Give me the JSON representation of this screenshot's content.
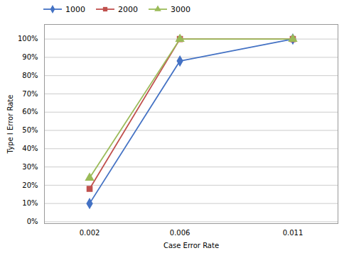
{
  "chart_data": {
    "type": "line",
    "x_label": "Case Error Rate",
    "y_label": "Type I Error Rate",
    "x": [
      0.002,
      0.006,
      0.011
    ],
    "series": [
      {
        "name": "1000",
        "color": "#4472C4",
        "marker": "diamond",
        "values": [
          0.1,
          0.88,
          1.0
        ]
      },
      {
        "name": "2000",
        "color": "#C0504D",
        "marker": "square",
        "values": [
          0.18,
          1.0,
          1.0
        ]
      },
      {
        "name": "3000",
        "color": "#9BBB59",
        "marker": "triangle",
        "values": [
          0.24,
          1.0,
          1.0
        ]
      }
    ],
    "xlim": [
      0.0,
      0.013
    ],
    "xticks": [
      0.002,
      0.006,
      0.011
    ],
    "ylim": [
      -0.01,
      1.08
    ],
    "yticks": [
      {
        "value": 0.0,
        "label": "0%"
      },
      {
        "value": 0.1,
        "label": "10%"
      },
      {
        "value": 0.2,
        "label": "20%"
      },
      {
        "value": 0.3,
        "label": "30%"
      },
      {
        "value": 0.4,
        "label": "40%"
      },
      {
        "value": 0.5,
        "label": "50%"
      },
      {
        "value": 0.6,
        "label": "60%"
      },
      {
        "value": 0.7,
        "label": "70%"
      },
      {
        "value": 0.8,
        "label": "80%"
      },
      {
        "value": 0.9,
        "label": "90%"
      },
      {
        "value": 1.0,
        "label": "100%"
      }
    ],
    "grid": "y",
    "legend": "upper left"
  }
}
